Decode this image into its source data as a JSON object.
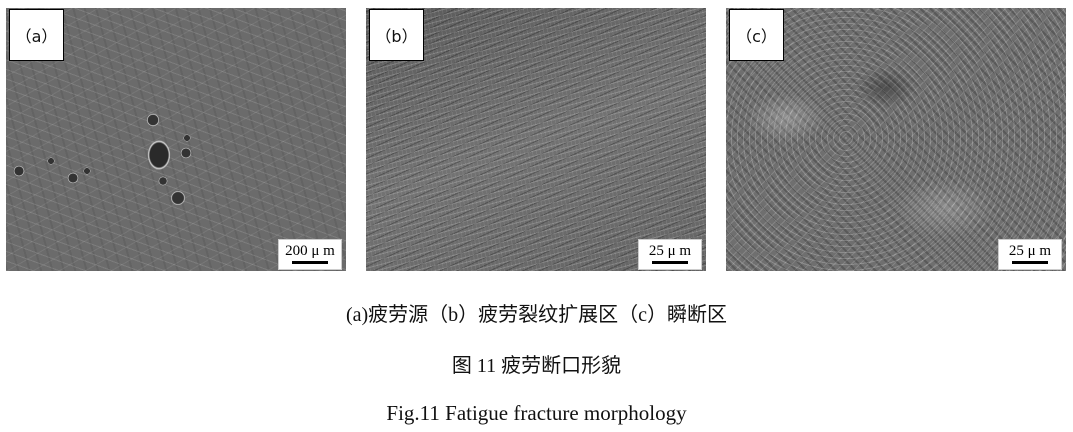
{
  "panels": [
    {
      "label": "（a）",
      "scale": "200 μ m"
    },
    {
      "label": "（b）",
      "scale": "25 μ m"
    },
    {
      "label": "（c）",
      "scale": "25 μ m"
    }
  ],
  "captions": {
    "subcaption": "(a)疲劳源（b）疲劳裂纹扩展区（c）瞬断区",
    "title_cn": "图 11  疲劳断口形貌",
    "title_en": "Fig.11 Fatigue fracture morphology"
  }
}
